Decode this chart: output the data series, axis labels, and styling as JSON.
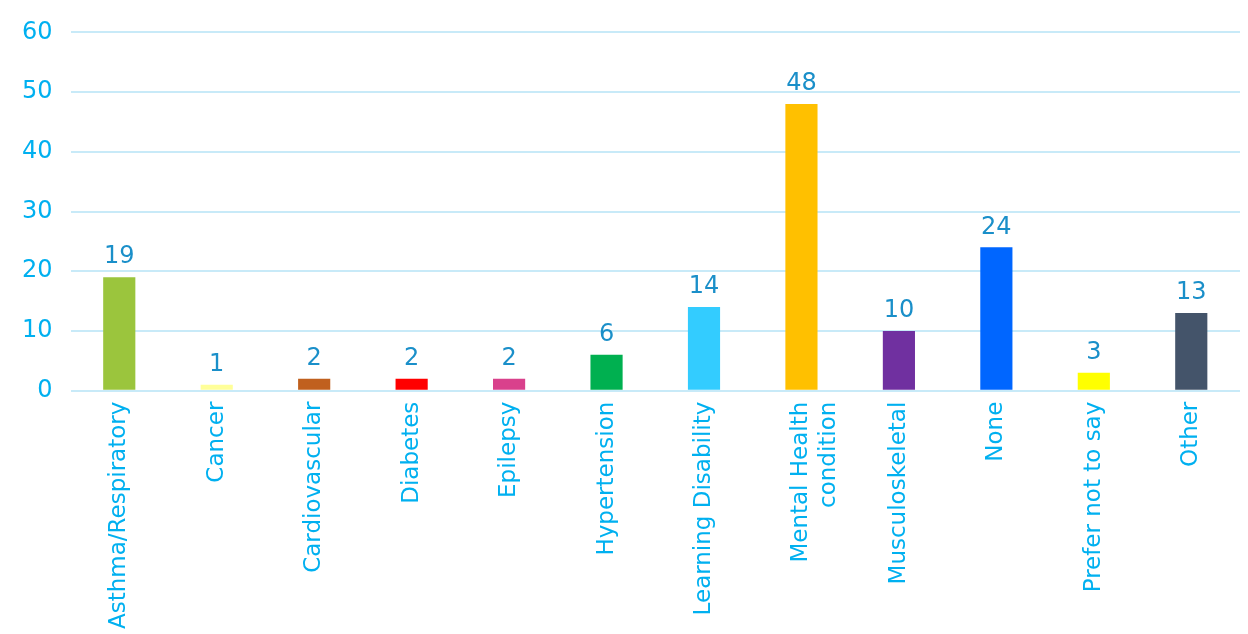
{
  "chart_data": {
    "type": "bar",
    "categories": [
      "Asthma/Respiratory",
      "Cancer",
      "Cardiovascular",
      "Diabetes",
      "Epilepsy",
      "Hypertension",
      "Learning Disability",
      "Mental Health condition",
      "Musculoskeletal",
      "None",
      "Prefer not to say",
      "Other"
    ],
    "values": [
      19,
      1,
      2,
      2,
      2,
      6,
      14,
      48,
      10,
      24,
      3,
      13
    ],
    "colors": [
      "#9bc53d",
      "#ffff99",
      "#c0601e",
      "#ff0000",
      "#d9418c",
      "#00b050",
      "#33ccff",
      "#ffc000",
      "#7030a0",
      "#0066ff",
      "#ffff00",
      "#44546a"
    ],
    "ylim": [
      0,
      60
    ],
    "yticks": [
      0,
      10,
      20,
      30,
      40,
      50,
      60
    ],
    "grid": "y",
    "data_labels": true,
    "legend": false
  }
}
